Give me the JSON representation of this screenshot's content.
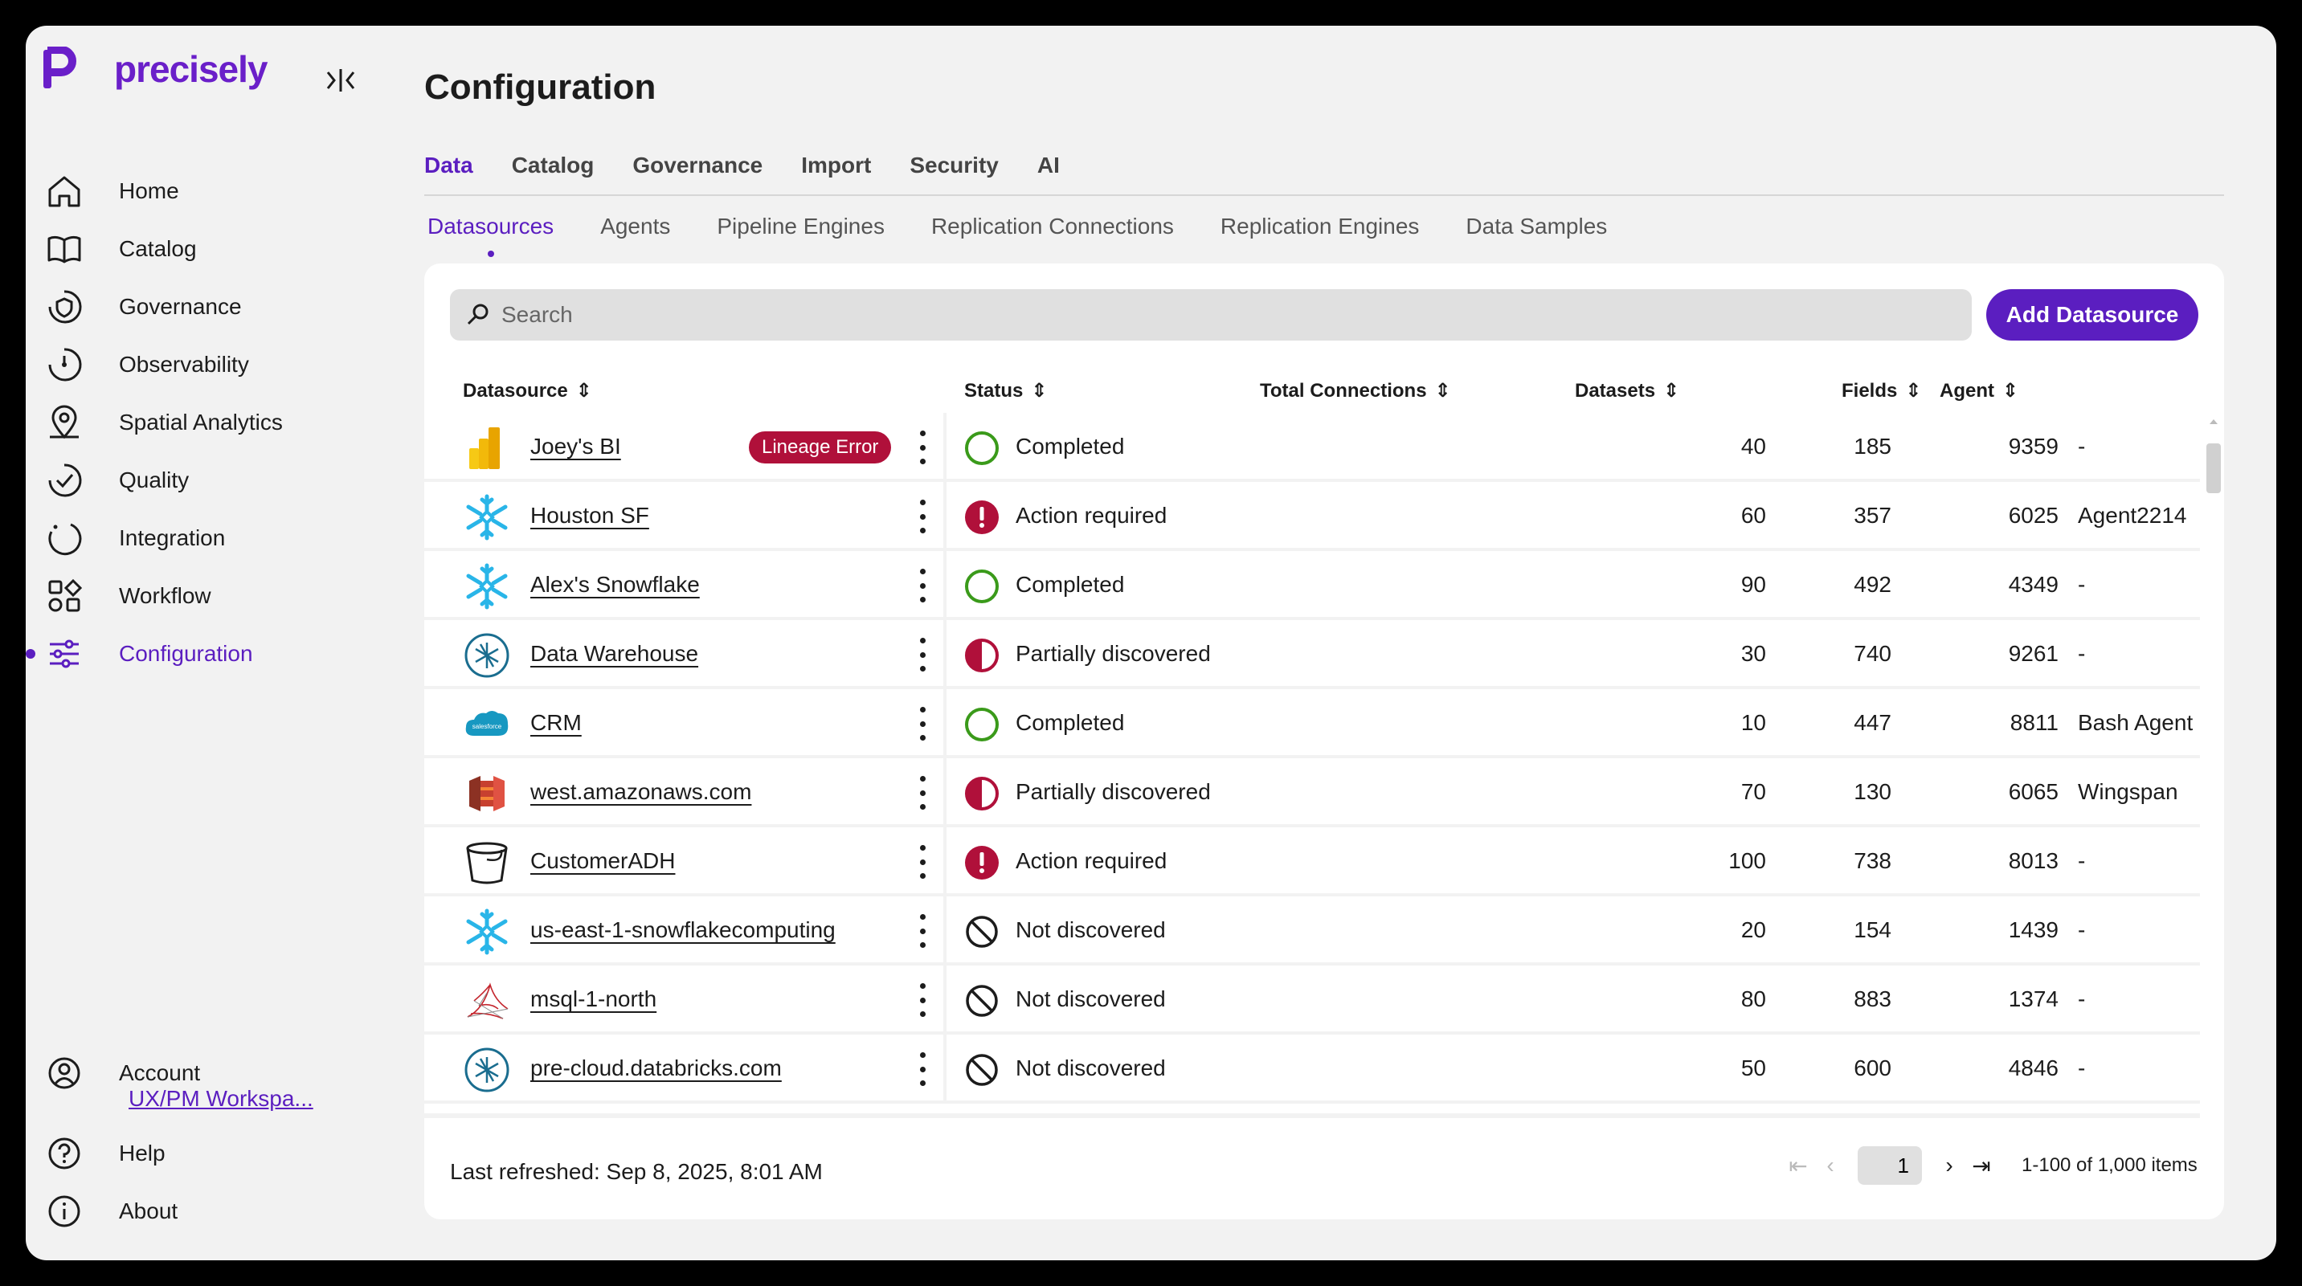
{
  "app": {
    "brand": "precisely",
    "brand_color": "#5b1ec0",
    "page_title": "Configuration"
  },
  "sidebar": {
    "items": [
      {
        "label": "Home",
        "icon": "home-icon"
      },
      {
        "label": "Catalog",
        "icon": "book-icon"
      },
      {
        "label": "Governance",
        "icon": "governance-icon"
      },
      {
        "label": "Observability",
        "icon": "observability-icon"
      },
      {
        "label": "Spatial Analytics",
        "icon": "location-pin-icon"
      },
      {
        "label": "Quality",
        "icon": "quality-check-icon"
      },
      {
        "label": "Integration",
        "icon": "integration-icon"
      },
      {
        "label": "Workflow",
        "icon": "workflow-icon"
      },
      {
        "label": "Configuration",
        "icon": "sliders-icon",
        "active": true
      }
    ],
    "account_label": "Account",
    "workspace": "UX/PM Workspa...",
    "help_label": "Help",
    "about_label": "About"
  },
  "tabs": [
    "Data",
    "Catalog",
    "Governance",
    "Import",
    "Security",
    "AI"
  ],
  "active_tab": "Data",
  "subtabs": [
    "Datasources",
    "Agents",
    "Pipeline Engines",
    "Replication Connections",
    "Replication Engines",
    "Data Samples"
  ],
  "active_subtab": "Datasources",
  "search": {
    "placeholder": "Search"
  },
  "add_button": "Add Datasource",
  "columns": {
    "datasource": "Datasource",
    "status": "Status",
    "total_connections": "Total Connections",
    "datasets": "Datasets",
    "fields": "Fields",
    "agent": "Agent"
  },
  "rows": [
    {
      "name": "Joey's BI",
      "icon": "power-bi-icon",
      "badge": "Lineage Error",
      "status": "Completed",
      "status_icon": "completed",
      "connections": "40",
      "datasets": "185",
      "fields": "9359",
      "agent": "-"
    },
    {
      "name": "Houston SF",
      "icon": "snowflake-icon",
      "status": "Action required",
      "status_icon": "action",
      "connections": "60",
      "datasets": "357",
      "fields": "6025",
      "agent": "Agent2214"
    },
    {
      "name": "Alex's Snowflake",
      "icon": "snowflake-icon",
      "status": "Completed",
      "status_icon": "completed",
      "connections": "90",
      "datasets": "492",
      "fields": "4349",
      "agent": "-"
    },
    {
      "name": "Data Warehouse",
      "icon": "databricks-icon",
      "status": "Partially discovered",
      "status_icon": "partial",
      "connections": "30",
      "datasets": "740",
      "fields": "9261",
      "agent": "-"
    },
    {
      "name": "CRM",
      "icon": "salesforce-icon",
      "status": "Completed",
      "status_icon": "completed",
      "connections": "10",
      "datasets": "447",
      "fields": "8811",
      "agent": "Bash Agent"
    },
    {
      "name": "west.amazonaws.com",
      "icon": "amazon-s3-icon",
      "status": "Partially discovered",
      "status_icon": "partial",
      "connections": "70",
      "datasets": "130",
      "fields": "6065",
      "agent": "Wingspan"
    },
    {
      "name": "CustomerADH",
      "icon": "bucket-icon",
      "status": "Action required",
      "status_icon": "action",
      "connections": "100",
      "datasets": "738",
      "fields": "8013",
      "agent": "-"
    },
    {
      "name": "us-east-1-snowflakecomputing",
      "icon": "snowflake-icon",
      "status": "Not discovered",
      "status_icon": "none",
      "connections": "20",
      "datasets": "154",
      "fields": "1439",
      "agent": "-"
    },
    {
      "name": "msql-1-north",
      "icon": "sql-server-icon",
      "status": "Not discovered",
      "status_icon": "none",
      "connections": "80",
      "datasets": "883",
      "fields": "1374",
      "agent": "-"
    },
    {
      "name": "pre-cloud.databricks.com",
      "icon": "databricks-icon",
      "status": "Not discovered",
      "status_icon": "none",
      "connections": "50",
      "datasets": "600",
      "fields": "4846",
      "agent": "-"
    }
  ],
  "footer": {
    "refreshed": "Last refreshed: Sep 8, 2025, 8:01 AM",
    "page": "1",
    "range": "1-100 of 1,000 items"
  },
  "status_colors": {
    "completed": "#3a9a1a",
    "action": "#b0103a",
    "partial": "#b0103a",
    "none": "#1c1c1c"
  }
}
